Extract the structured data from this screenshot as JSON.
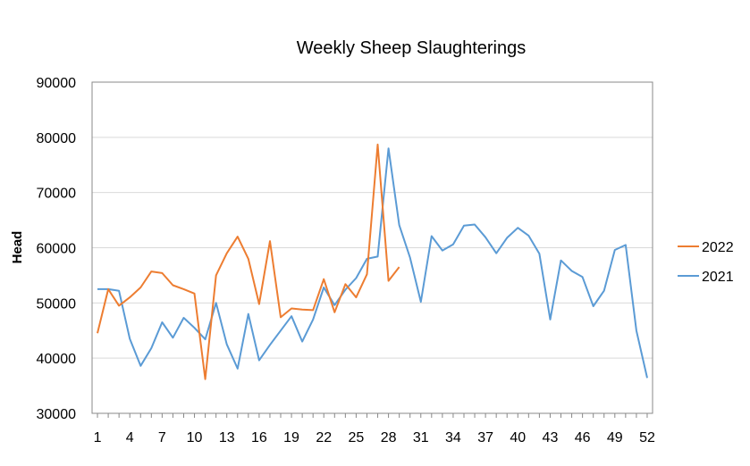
{
  "chart_data": {
    "type": "line",
    "title": "Weekly Sheep Slaughterings",
    "xlabel": "",
    "ylabel": "Head",
    "ylim": [
      30000,
      90000
    ],
    "yticks": [
      "30000",
      "40000",
      "50000",
      "60000",
      "70000",
      "80000",
      "90000"
    ],
    "xticks": [
      "1",
      "4",
      "7",
      "10",
      "13",
      "16",
      "19",
      "22",
      "25",
      "28",
      "31",
      "34",
      "37",
      "40",
      "43",
      "46",
      "49",
      "52"
    ],
    "legend_position": "right",
    "grid": "horizontal",
    "series": [
      {
        "name": "2022",
        "color": "#ED7D31",
        "x": [
          1,
          2,
          3,
          4,
          5,
          6,
          7,
          8,
          9,
          10,
          11,
          12,
          13,
          14,
          15,
          16,
          17,
          18,
          19,
          20,
          21,
          22,
          23,
          24,
          25,
          26,
          27,
          28,
          29
        ],
        "values": [
          44500,
          52500,
          49500,
          51000,
          52800,
          55700,
          55400,
          53200,
          52500,
          51700,
          36200,
          55000,
          59000,
          62000,
          58000,
          49800,
          61200,
          47400,
          49000,
          48800,
          48700,
          54300,
          48300,
          53400,
          51000,
          55200,
          78700,
          54000,
          56500
        ]
      },
      {
        "name": "2021",
        "color": "#5B9BD5",
        "x": [
          1,
          2,
          3,
          4,
          5,
          6,
          7,
          8,
          9,
          10,
          11,
          12,
          13,
          14,
          15,
          16,
          17,
          18,
          19,
          20,
          21,
          22,
          23,
          24,
          25,
          26,
          27,
          28,
          29,
          30,
          31,
          32,
          33,
          34,
          35,
          36,
          37,
          38,
          39,
          40,
          41,
          42,
          43,
          44,
          45,
          46,
          47,
          48,
          49,
          50,
          51,
          52
        ],
        "values": [
          52500,
          52500,
          52200,
          43500,
          38600,
          41800,
          46500,
          43700,
          47300,
          45500,
          43400,
          50000,
          42500,
          38100,
          48000,
          39600,
          42400,
          45000,
          47600,
          43000,
          47000,
          52800,
          49600,
          52400,
          54500,
          58000,
          58400,
          78000,
          64100,
          58200,
          50200,
          62100,
          59500,
          60600,
          64000,
          64200,
          61900,
          59000,
          61800,
          63600,
          62200,
          58900,
          47000,
          57700,
          55800,
          54700,
          49400,
          52200,
          59600,
          60500,
          45000,
          36400
        ]
      }
    ]
  }
}
